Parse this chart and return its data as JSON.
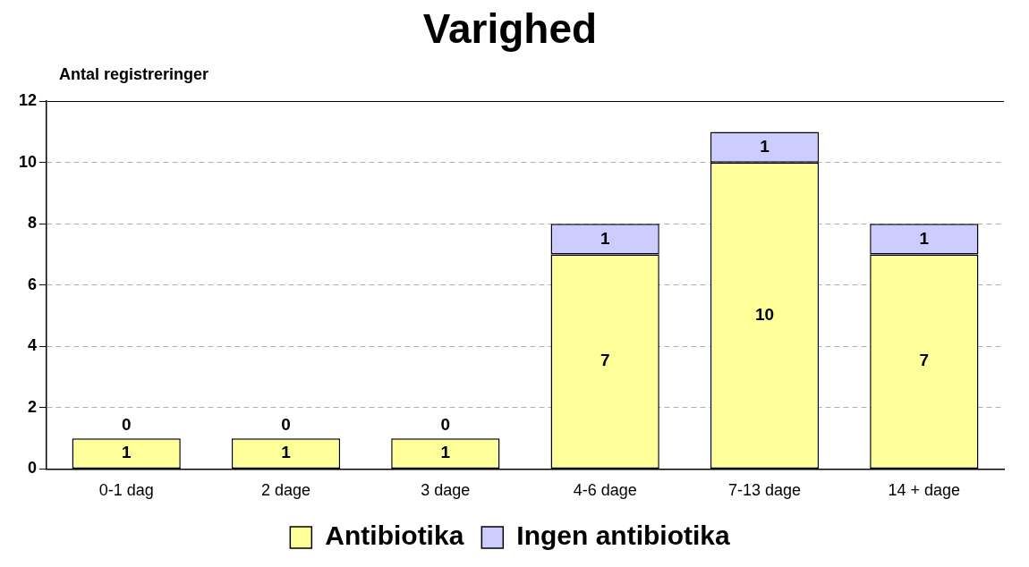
{
  "chart_data": {
    "type": "bar",
    "title": "Varighed",
    "ylabel": "Antal registreringer",
    "categories": [
      "0-1 dag",
      "2 dage",
      "3 dage",
      "4-6 dage",
      "7-13 dage",
      "14 + dage"
    ],
    "series": [
      {
        "name": "Antibiotika",
        "color": "#ffff99",
        "values": [
          1,
          1,
          1,
          7,
          10,
          7
        ]
      },
      {
        "name": "Ingen antibiotika",
        "color": "#ccccff",
        "values": [
          0,
          0,
          0,
          1,
          1,
          1
        ]
      }
    ],
    "stacked": true,
    "ylim": [
      0,
      12
    ],
    "yticks": [
      0,
      2,
      4,
      6,
      8,
      10,
      12
    ],
    "grid": "y",
    "legend": "bottom",
    "data_labels": true
  }
}
